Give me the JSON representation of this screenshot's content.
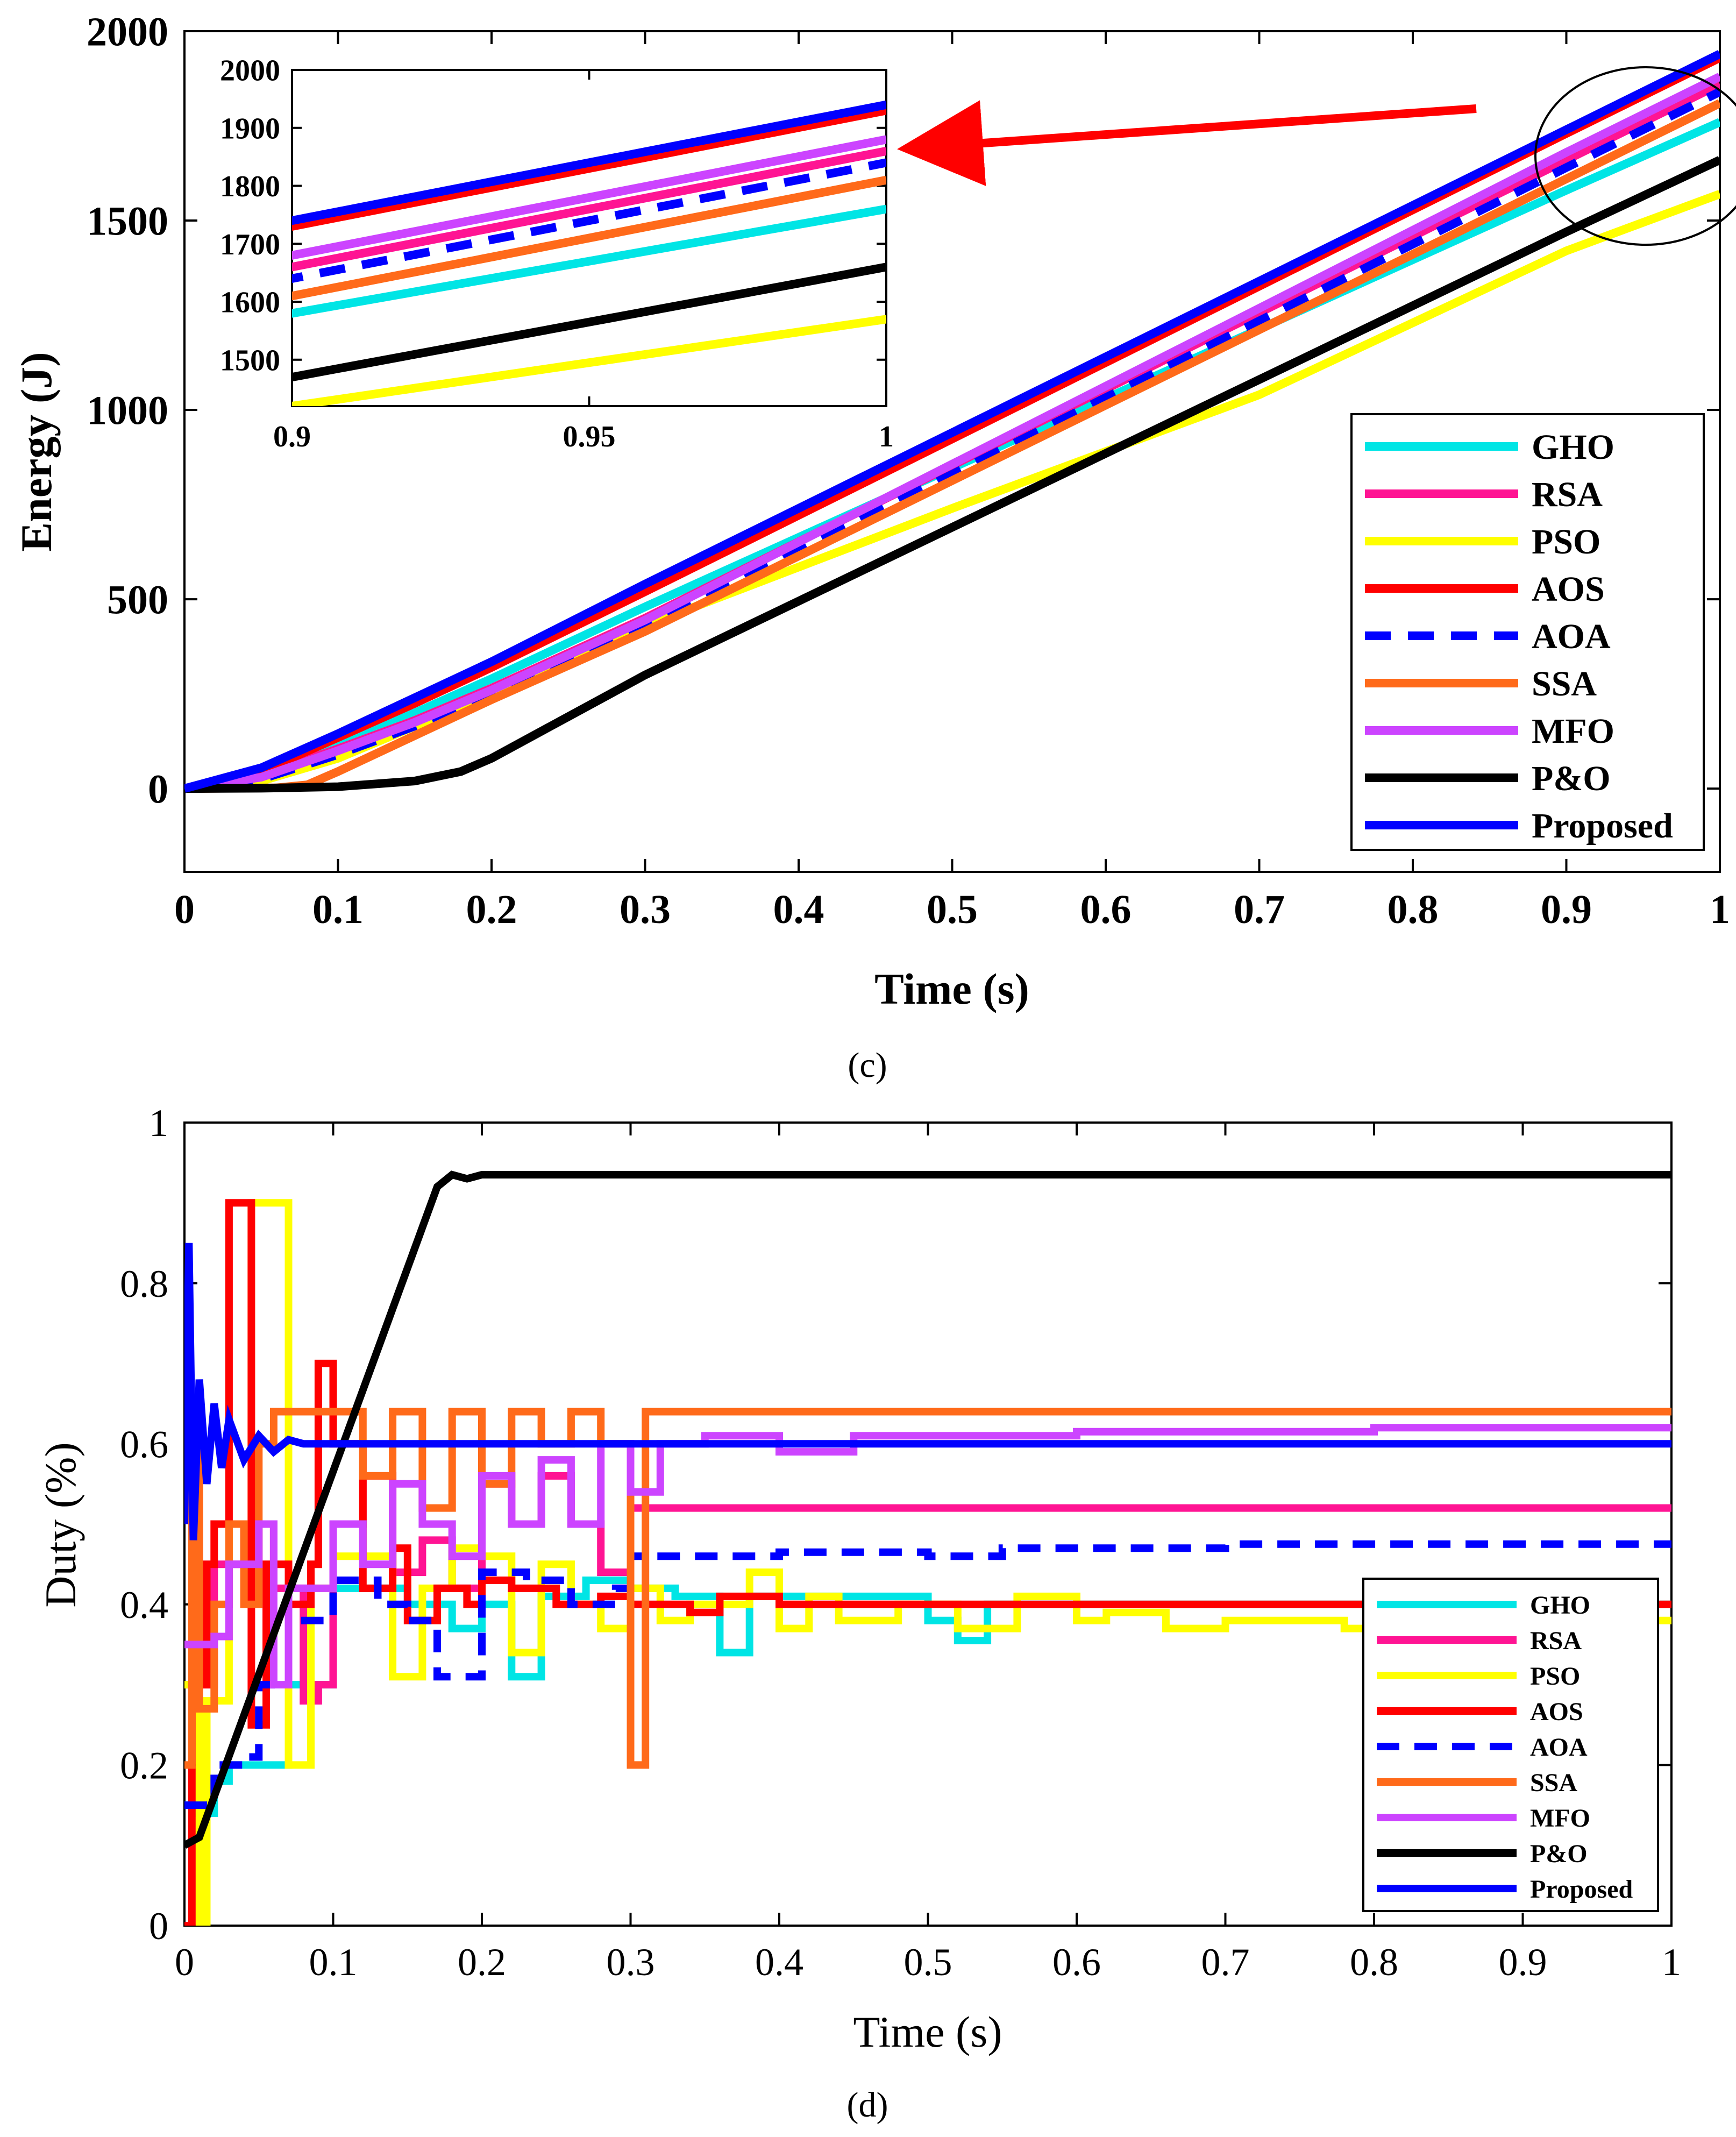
{
  "colors": {
    "GHO": "#00E5E5",
    "RSA": "#FF1493",
    "PSO": "#FFFF00",
    "AOS": "#FF0000",
    "AOA": "#0000FF",
    "SSA": "#FF6A1A",
    "MFO": "#CC44FF",
    "P&O": "#000000",
    "Proposed": "#0000FF",
    "annotation": "#FF0000"
  },
  "chart_data": [
    {
      "type": "line",
      "panel_caption": "(c)",
      "xlabel": "Time (s)",
      "ylabel": "Energy (J)",
      "xlim": [
        0,
        1
      ],
      "ylim": [
        -220,
        2000
      ],
      "xticks": [
        "0",
        "0.1",
        "0.2",
        "0.3",
        "0.4",
        "0.5",
        "0.6",
        "0.7",
        "0.8",
        "0.9",
        "1"
      ],
      "yticks": [
        "0",
        "500",
        "1000",
        "1500",
        "2000"
      ],
      "grid": false,
      "legend_position": "bottom-right",
      "legend": [
        "GHO",
        "RSA",
        "PSO",
        "AOS",
        "AOA",
        "SSA",
        "MFO",
        "P&O",
        "Proposed"
      ],
      "series": [
        {
          "name": "GHO",
          "style": "solid",
          "x": [
            0,
            0.05,
            0.1,
            0.15,
            0.2,
            0.3,
            0.9,
            0.95,
            1.0
          ],
          "y": [
            0,
            40,
            120,
            200,
            290,
            480,
            1580,
            1670,
            1760
          ]
        },
        {
          "name": "RSA",
          "style": "solid",
          "x": [
            0,
            0.05,
            0.1,
            0.15,
            0.2,
            0.3,
            0.9,
            0.95,
            1.0
          ],
          "y": [
            0,
            35,
            105,
            180,
            265,
            450,
            1660,
            1760,
            1860
          ]
        },
        {
          "name": "PSO",
          "style": "solid",
          "x": [
            0,
            0.05,
            0.1,
            0.2,
            0.3,
            0.5,
            0.7,
            0.9,
            0.95,
            1.0
          ],
          "y": [
            0,
            20,
            80,
            250,
            430,
            740,
            1040,
            1420,
            1495,
            1570
          ]
        },
        {
          "name": "AOS",
          "style": "solid",
          "x": [
            0,
            0.05,
            0.1,
            0.15,
            0.2,
            0.3,
            0.9,
            0.95,
            1.0
          ],
          "y": [
            0,
            45,
            135,
            225,
            320,
            520,
            1730,
            1830,
            1930
          ]
        },
        {
          "name": "AOA",
          "style": "dashed",
          "x": [
            0,
            0.05,
            0.1,
            0.15,
            0.2,
            0.3,
            0.9,
            0.95,
            1.0
          ],
          "y": [
            0,
            25,
            90,
            165,
            245,
            425,
            1640,
            1740,
            1840
          ]
        },
        {
          "name": "SSA",
          "style": "solid",
          "x": [
            0,
            0.06,
            0.08,
            0.1,
            0.15,
            0.2,
            0.3,
            0.9,
            0.95,
            1.0
          ],
          "y": [
            0,
            2,
            10,
            45,
            140,
            235,
            415,
            1610,
            1710,
            1810
          ]
        },
        {
          "name": "MFO",
          "style": "solid",
          "x": [
            0,
            0.05,
            0.1,
            0.15,
            0.2,
            0.3,
            0.9,
            0.95,
            1.0
          ],
          "y": [
            0,
            30,
            100,
            175,
            260,
            445,
            1680,
            1780,
            1880
          ]
        },
        {
          "name": "P&O",
          "style": "solid",
          "x": [
            0,
            0.05,
            0.1,
            0.15,
            0.18,
            0.2,
            0.25,
            0.3,
            0.9,
            0.95,
            1.0
          ],
          "y": [
            0,
            1,
            5,
            20,
            45,
            80,
            190,
            300,
            1470,
            1565,
            1660
          ]
        },
        {
          "name": "Proposed",
          "style": "solid",
          "x": [
            0,
            0.05,
            0.1,
            0.15,
            0.2,
            0.3,
            0.9,
            0.95,
            1.0
          ],
          "y": [
            0,
            55,
            145,
            240,
            335,
            540,
            1740,
            1840,
            1940
          ]
        }
      ],
      "inset": {
        "xlim": [
          0.9,
          1.0
        ],
        "ylim": [
          1420,
          2000
        ],
        "xticks": [
          "0.9",
          "0.95",
          "1"
        ],
        "yticks": [
          "1500",
          "1600",
          "1700",
          "1800",
          "1900",
          "2000"
        ]
      }
    },
    {
      "type": "line",
      "panel_caption": "(d)",
      "xlabel": "Time (s)",
      "ylabel": "Duty (%)",
      "xlim": [
        0,
        1
      ],
      "ylim": [
        0,
        1
      ],
      "xticks": [
        "0",
        "0.1",
        "0.2",
        "0.3",
        "0.4",
        "0.5",
        "0.6",
        "0.7",
        "0.8",
        "0.9",
        "1"
      ],
      "yticks": [
        "0",
        "0.2",
        "0.4",
        "0.6",
        "0.8",
        "1"
      ],
      "grid": false,
      "legend_position": "bottom-right",
      "legend": [
        "GHO",
        "RSA",
        "PSO",
        "AOS",
        "AOA",
        "SSA",
        "MFO",
        "P&O",
        "Proposed"
      ],
      "series": [
        {
          "name": "GHO",
          "style": "step",
          "x": [
            0,
            0.01,
            0.02,
            0.03,
            0.05,
            0.07,
            0.1,
            0.15,
            0.18,
            0.2,
            0.22,
            0.24,
            0.27,
            0.3,
            0.33,
            0.36,
            0.38,
            0.4,
            0.5,
            0.52,
            0.54,
            0.6,
            1.0
          ],
          "y": [
            0.15,
            0.14,
            0.18,
            0.2,
            0.2,
            0.3,
            0.42,
            0.4,
            0.37,
            0.4,
            0.31,
            0.41,
            0.43,
            0.42,
            0.41,
            0.34,
            0.41,
            0.41,
            0.38,
            0.355,
            0.4,
            0.4,
            0.4
          ]
        },
        {
          "name": "RSA",
          "style": "step",
          "x": [
            0,
            0.02,
            0.04,
            0.06,
            0.08,
            0.09,
            0.1,
            0.12,
            0.14,
            0.16,
            0.18,
            0.2,
            0.22,
            0.24,
            0.26,
            0.28,
            0.3,
            0.32,
            1.0
          ],
          "y": [
            0.3,
            0.45,
            0.5,
            0.42,
            0.28,
            0.3,
            0.5,
            0.56,
            0.44,
            0.48,
            0.42,
            0.55,
            0.5,
            0.56,
            0.5,
            0.44,
            0.52,
            0.52,
            0.52
          ]
        },
        {
          "name": "PSO",
          "style": "step",
          "x": [
            0,
            0.01,
            0.015,
            0.03,
            0.045,
            0.06,
            0.07,
            0.085,
            0.1,
            0.14,
            0.16,
            0.18,
            0.2,
            0.22,
            0.24,
            0.26,
            0.28,
            0.3,
            0.32,
            0.34,
            0.38,
            0.4,
            0.42,
            0.44,
            0.48,
            0.52,
            0.56,
            0.6,
            0.62,
            0.66,
            0.7,
            0.74,
            0.78,
            0.82,
            0.86,
            0.9,
            0.95,
            1.0
          ],
          "y": [
            0.3,
            0,
            0.28,
            0.5,
            0.9,
            0.9,
            0.2,
            0.42,
            0.46,
            0.31,
            0.42,
            0.47,
            0.46,
            0.34,
            0.45,
            0.4,
            0.37,
            0.42,
            0.38,
            0.4,
            0.44,
            0.37,
            0.41,
            0.38,
            0.4,
            0.37,
            0.41,
            0.38,
            0.39,
            0.37,
            0.38,
            0.38,
            0.37,
            0.38,
            0.37,
            0.38,
            0.38,
            0.38
          ]
        },
        {
          "name": "AOS",
          "style": "step",
          "x": [
            0,
            0.005,
            0.015,
            0.02,
            0.03,
            0.045,
            0.055,
            0.07,
            0.085,
            0.09,
            0.1,
            0.12,
            0.14,
            0.15,
            0.17,
            0.19,
            0.2,
            0.22,
            0.25,
            0.28,
            0.3,
            0.34,
            0.36,
            0.4,
            1.0
          ],
          "y": [
            0,
            0.3,
            0.45,
            0.5,
            0.9,
            0.25,
            0.45,
            0.4,
            0.45,
            0.7,
            0.6,
            0.42,
            0.47,
            0.38,
            0.42,
            0.4,
            0.43,
            0.42,
            0.4,
            0.41,
            0.4,
            0.39,
            0.41,
            0.4,
            0.4
          ]
        },
        {
          "name": "AOA",
          "style": "dashed",
          "x": [
            0,
            0.01,
            0.02,
            0.03,
            0.04,
            0.05,
            0.07,
            0.1,
            0.13,
            0.15,
            0.17,
            0.2,
            0.23,
            0.26,
            0.29,
            0.3,
            0.33,
            0.36,
            0.4,
            0.5,
            0.55,
            0.6,
            0.7,
            0.8,
            0.9,
            1.0
          ],
          "y": [
            0.15,
            0.15,
            0.2,
            0.2,
            0.21,
            0.3,
            0.38,
            0.43,
            0.4,
            0.38,
            0.31,
            0.44,
            0.43,
            0.4,
            0.42,
            0.46,
            0.46,
            0.46,
            0.465,
            0.46,
            0.47,
            0.47,
            0.475,
            0.475,
            0.475,
            0.475
          ]
        },
        {
          "name": "SSA",
          "style": "step",
          "x": [
            0,
            0.005,
            0.01,
            0.02,
            0.03,
            0.04,
            0.05,
            0.06,
            0.08,
            0.1,
            0.12,
            0.14,
            0.16,
            0.18,
            0.2,
            0.22,
            0.24,
            0.26,
            0.28,
            0.3,
            0.31,
            0.32,
            1.0
          ],
          "y": [
            0.2,
            0.64,
            0.27,
            0.4,
            0.5,
            0.4,
            0.6,
            0.64,
            0.64,
            0.64,
            0.56,
            0.64,
            0.52,
            0.64,
            0.55,
            0.64,
            0.6,
            0.64,
            0.6,
            0.2,
            0.64,
            0.64,
            0.64
          ]
        },
        {
          "name": "MFO",
          "style": "step",
          "x": [
            0,
            0.02,
            0.03,
            0.05,
            0.06,
            0.07,
            0.1,
            0.12,
            0.14,
            0.16,
            0.18,
            0.2,
            0.22,
            0.24,
            0.26,
            0.28,
            0.3,
            0.32,
            0.35,
            0.4,
            0.45,
            0.5,
            0.6,
            0.7,
            0.8,
            0.9,
            1.0
          ],
          "y": [
            0.35,
            0.36,
            0.45,
            0.5,
            0.3,
            0.42,
            0.5,
            0.45,
            0.55,
            0.5,
            0.46,
            0.56,
            0.5,
            0.58,
            0.5,
            0.6,
            0.54,
            0.6,
            0.61,
            0.59,
            0.61,
            0.61,
            0.615,
            0.615,
            0.62,
            0.62,
            0.62
          ]
        },
        {
          "name": "P&O",
          "style": "solid",
          "x": [
            0,
            0.01,
            0.17,
            0.18,
            0.19,
            0.2,
            0.3,
            0.4,
            0.5,
            0.6,
            0.7,
            0.8,
            0.9,
            1.0
          ],
          "y": [
            0.1,
            0.11,
            0.92,
            0.935,
            0.93,
            0.935,
            0.935,
            0.935,
            0.935,
            0.935,
            0.935,
            0.935,
            0.935,
            0.935
          ]
        },
        {
          "name": "Proposed",
          "style": "solid",
          "x": [
            0,
            0.003,
            0.006,
            0.01,
            0.015,
            0.02,
            0.025,
            0.03,
            0.04,
            0.05,
            0.06,
            0.07,
            0.08,
            0.1,
            0.2,
            0.4,
            0.6,
            0.8,
            1.0
          ],
          "y": [
            0.5,
            0.85,
            0.48,
            0.68,
            0.55,
            0.65,
            0.57,
            0.63,
            0.58,
            0.61,
            0.59,
            0.605,
            0.6,
            0.6,
            0.6,
            0.6,
            0.6,
            0.6,
            0.6
          ]
        }
      ]
    }
  ]
}
